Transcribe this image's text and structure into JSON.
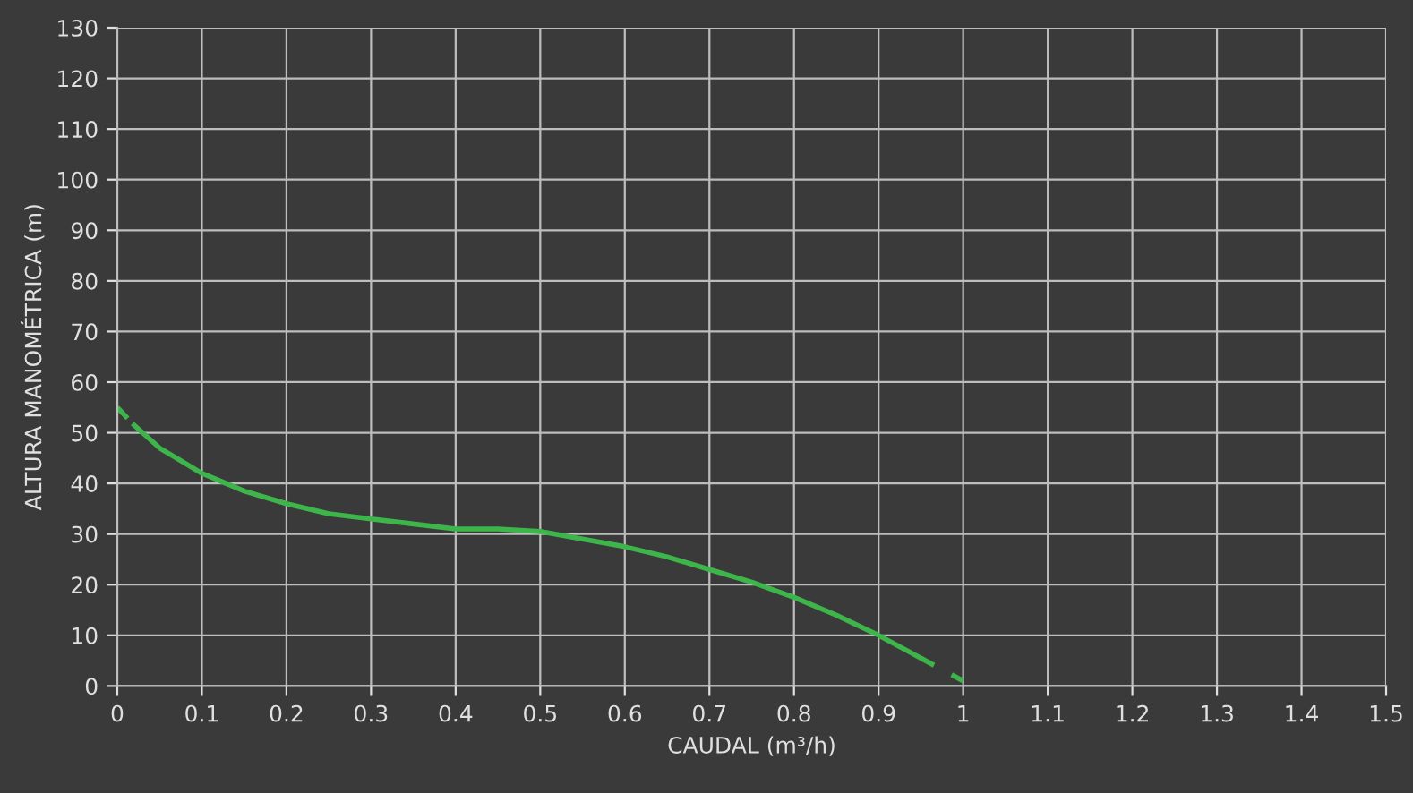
{
  "chart_data": {
    "type": "line",
    "xlabel": "CAUDAL (m³/h)",
    "ylabel": "ALTURA MANOMÉTRICA (m)",
    "xlim": [
      0,
      1.5
    ],
    "ylim": [
      0,
      130
    ],
    "xticks": [
      0,
      0.1,
      0.2,
      0.3,
      0.4,
      0.5,
      0.6,
      0.7,
      0.8,
      0.9,
      1,
      1.1,
      1.2,
      1.3,
      1.4,
      1.5
    ],
    "yticks": [
      0,
      10,
      20,
      30,
      40,
      50,
      60,
      70,
      80,
      90,
      100,
      110,
      120,
      130
    ],
    "grid": true,
    "marker": "none",
    "series": [
      {
        "color": "#3db54a",
        "line_style": "solid",
        "x": [
          0.02,
          0.05,
          0.1,
          0.15,
          0.2,
          0.25,
          0.3,
          0.35,
          0.4,
          0.45,
          0.5,
          0.55,
          0.6,
          0.65,
          0.7,
          0.75,
          0.8,
          0.85,
          0.9,
          0.95
        ],
        "values": [
          51.5,
          47,
          42,
          38.5,
          36,
          34,
          33,
          32,
          31,
          31,
          30.5,
          29,
          27.5,
          25.5,
          23,
          20.5,
          17.5,
          14,
          10,
          5.5
        ]
      },
      {
        "color": "#3db54a",
        "line_style": "dashed",
        "x": [
          0,
          0.02
        ],
        "values": [
          55,
          51.5
        ]
      },
      {
        "color": "#3db54a",
        "line_style": "dashed",
        "x": [
          0.95,
          1.0
        ],
        "values": [
          5.5,
          1
        ]
      }
    ]
  }
}
